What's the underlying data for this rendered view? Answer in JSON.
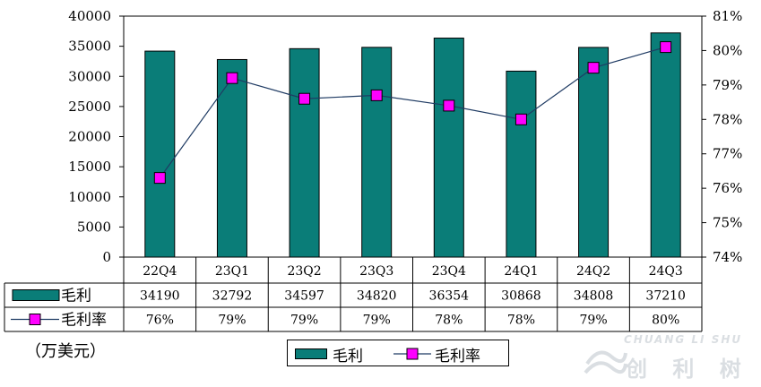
{
  "chart_data": {
    "type": "bar",
    "categories": [
      "22Q4",
      "23Q1",
      "23Q2",
      "23Q3",
      "23Q4",
      "24Q1",
      "24Q2",
      "24Q3"
    ],
    "series": [
      {
        "name": "毛利",
        "type": "bar",
        "axis": "left",
        "values": [
          34190,
          32792,
          34597,
          34820,
          36354,
          30868,
          34808,
          37210
        ],
        "color": "#0a7d78"
      },
      {
        "name": "毛利率",
        "type": "line",
        "axis": "right",
        "values": [
          76.3,
          79.2,
          78.6,
          78.7,
          78.4,
          78.0,
          79.5,
          80.1
        ],
        "color": "#ff00ff",
        "line_color": "#1f3b63"
      }
    ],
    "table_rows": [
      {
        "label": "毛利",
        "cells": [
          "34190",
          "32792",
          "34597",
          "34820",
          "36354",
          "30868",
          "34808",
          "37210"
        ]
      },
      {
        "label": "毛利率",
        "cells": [
          "76%",
          "79%",
          "79%",
          "79%",
          "78%",
          "78%",
          "79%",
          "80%"
        ]
      }
    ],
    "ylim_left": [
      0,
      40000
    ],
    "left_ticks": [
      "0",
      "5000",
      "10000",
      "15000",
      "20000",
      "25000",
      "30000",
      "35000",
      "40000"
    ],
    "ylim_right": [
      74,
      81
    ],
    "right_ticks": [
      "74%",
      "75%",
      "76%",
      "77%",
      "78%",
      "79%",
      "80%",
      "81%"
    ],
    "unit_label": "（万美元）",
    "legend": [
      "毛利",
      "毛利率"
    ],
    "legend_position": "bottom",
    "grid": false
  },
  "watermark": {
    "text_top": "CHUANG LI SHU",
    "text_bottom": "创 利 树"
  }
}
